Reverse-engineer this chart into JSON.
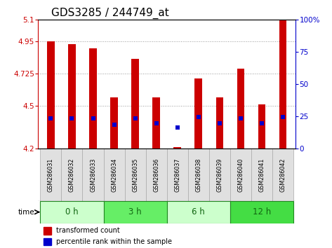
{
  "title": "GDS3285 / 244749_at",
  "samples": [
    "GSM286031",
    "GSM286032",
    "GSM286033",
    "GSM286034",
    "GSM286035",
    "GSM286036",
    "GSM286037",
    "GSM286038",
    "GSM286039",
    "GSM286040",
    "GSM286041",
    "GSM286042"
  ],
  "bar_bottoms": [
    4.2,
    4.2,
    4.2,
    4.2,
    4.2,
    4.2,
    4.2,
    4.2,
    4.2,
    4.2,
    4.2,
    4.2
  ],
  "bar_tops": [
    4.95,
    4.93,
    4.9,
    4.56,
    4.83,
    4.56,
    4.21,
    4.69,
    4.56,
    4.76,
    4.51,
    5.1
  ],
  "blue_dots": [
    4.41,
    4.41,
    4.41,
    4.37,
    4.41,
    4.38,
    4.35,
    4.42,
    4.38,
    4.41,
    4.38,
    4.42
  ],
  "ylim": [
    4.2,
    5.1
  ],
  "yticks_left": [
    4.2,
    4.5,
    4.725,
    4.95
  ],
  "ytick_top": 5.1,
  "yticks_right": [
    0,
    25,
    50,
    75,
    100
  ],
  "groups": [
    {
      "label": "0 h",
      "start": 0,
      "end": 3,
      "color": "#ccffcc"
    },
    {
      "label": "3 h",
      "start": 3,
      "end": 6,
      "color": "#66ee66"
    },
    {
      "label": "6 h",
      "start": 6,
      "end": 9,
      "color": "#ccffcc"
    },
    {
      "label": "12 h",
      "start": 9,
      "end": 12,
      "color": "#44dd44"
    }
  ],
  "left_axis_color": "#cc0000",
  "right_axis_color": "#0000cc",
  "bar_color": "#cc0000",
  "dot_color": "#0000cc",
  "grid_color": "#999999",
  "title_fontsize": 11,
  "bar_width": 0.35
}
